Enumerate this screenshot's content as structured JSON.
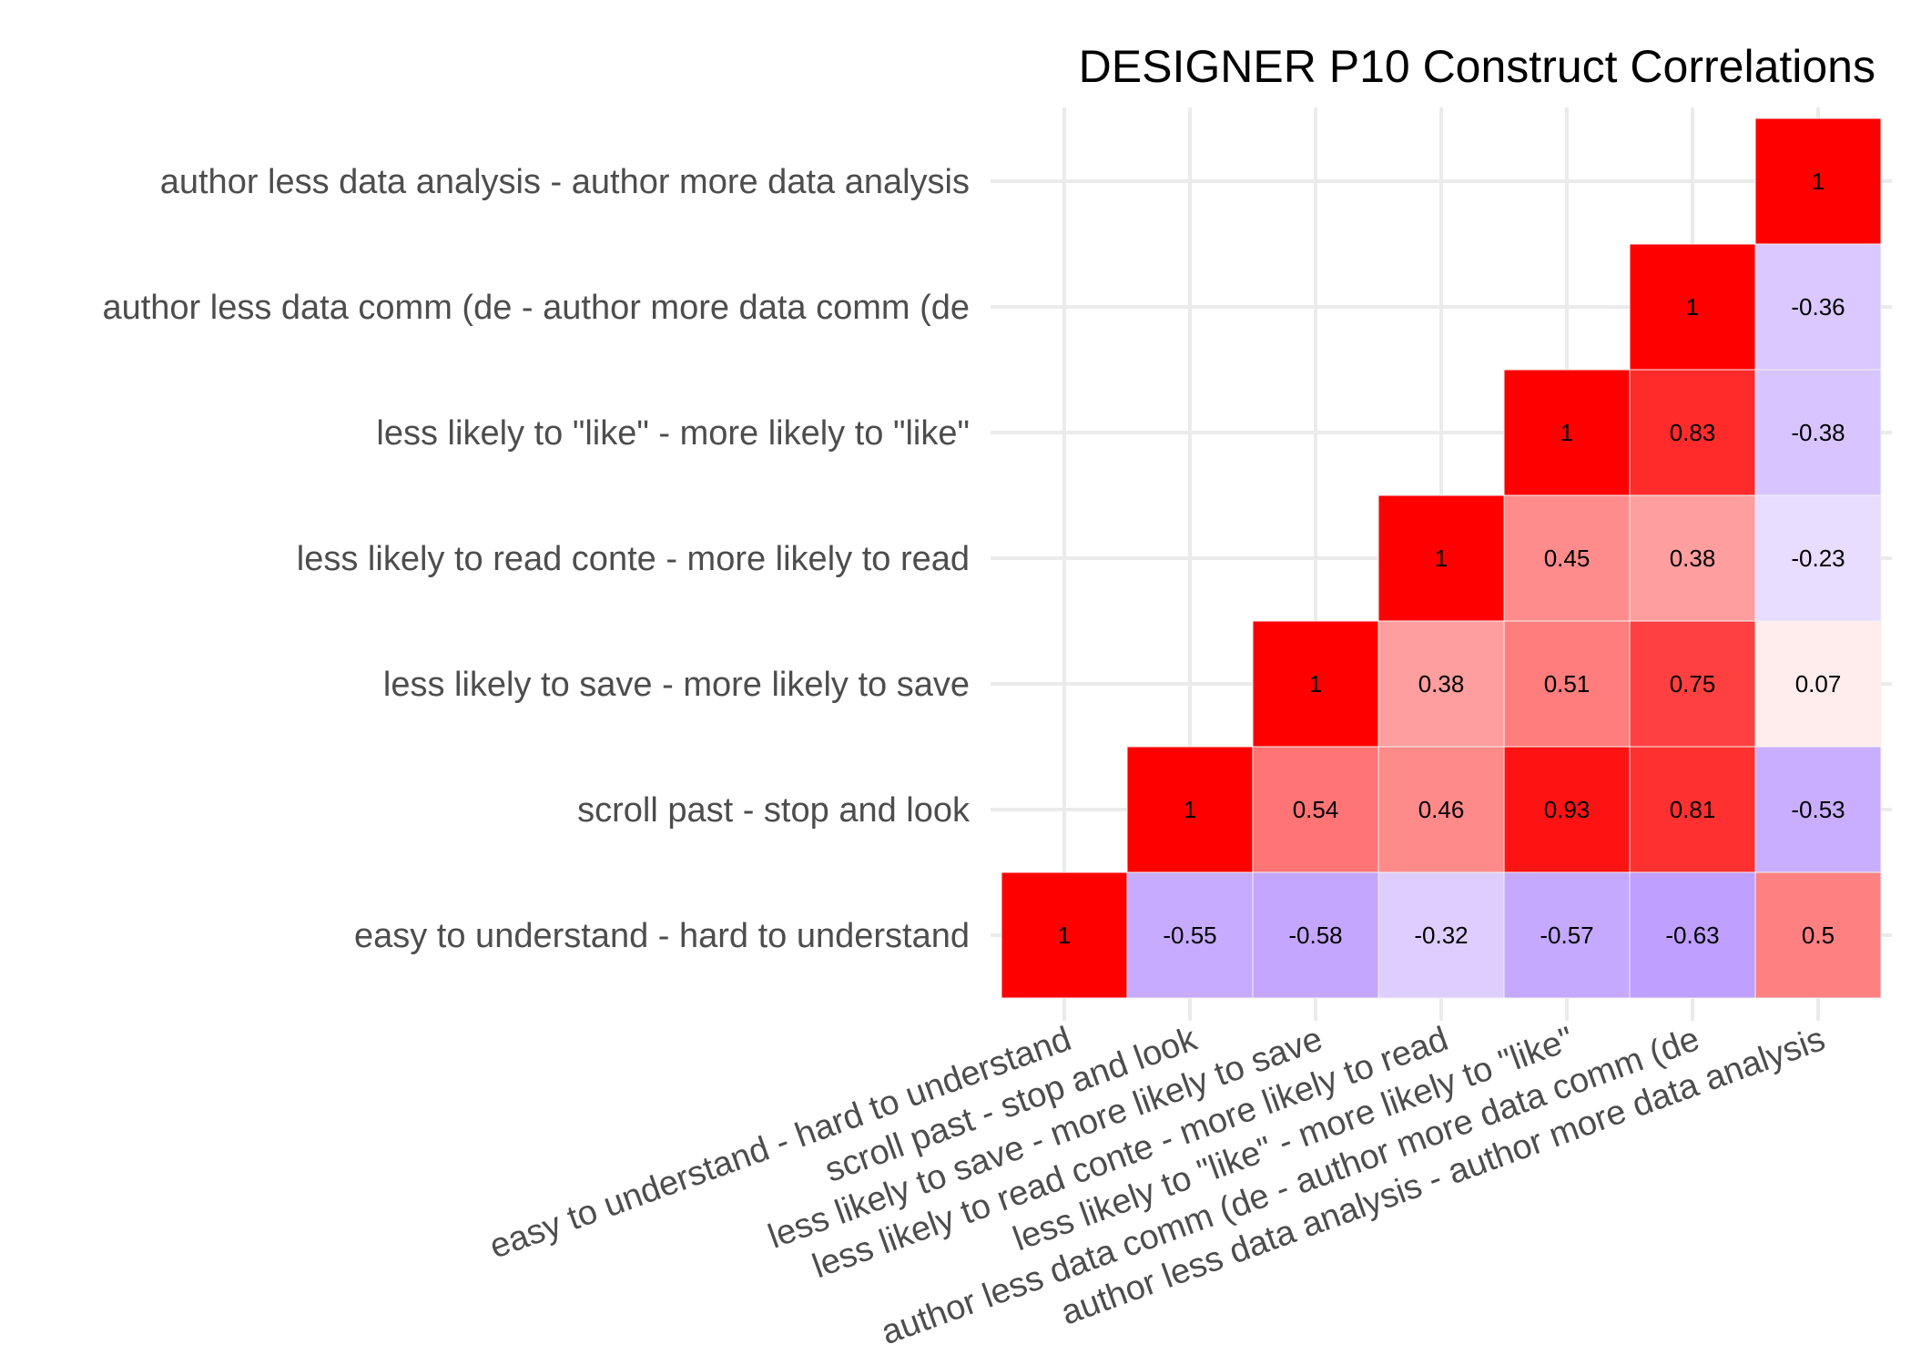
{
  "chart_data": {
    "type": "heatmap",
    "title": "DESIGNER P10 Construct Correlations",
    "xlabel": "",
    "ylabel": "",
    "categories": [
      "easy to understand - hard to understand",
      "scroll past - stop and look",
      "less likely to save - more likely to save",
      "less likely to read conte - more likely to read",
      "less likely to \"like\" - more likely to \"like\"",
      "author less data comm (de - author more data comm (de",
      "author less data analysis - author more data analysis"
    ],
    "cells": [
      {
        "x": 0,
        "y": 0,
        "value": 1,
        "label": "1"
      },
      {
        "x": 1,
        "y": 0,
        "value": -0.55,
        "label": "-0.55"
      },
      {
        "x": 2,
        "y": 0,
        "value": -0.58,
        "label": "-0.58"
      },
      {
        "x": 3,
        "y": 0,
        "value": -0.32,
        "label": "-0.32"
      },
      {
        "x": 4,
        "y": 0,
        "value": -0.57,
        "label": "-0.57"
      },
      {
        "x": 5,
        "y": 0,
        "value": -0.63,
        "label": "-0.63"
      },
      {
        "x": 6,
        "y": 0,
        "value": 0.5,
        "label": "0.5"
      },
      {
        "x": 1,
        "y": 1,
        "value": 1,
        "label": "1"
      },
      {
        "x": 2,
        "y": 1,
        "value": 0.54,
        "label": "0.54"
      },
      {
        "x": 3,
        "y": 1,
        "value": 0.46,
        "label": "0.46"
      },
      {
        "x": 4,
        "y": 1,
        "value": 0.93,
        "label": "0.93"
      },
      {
        "x": 5,
        "y": 1,
        "value": 0.81,
        "label": "0.81"
      },
      {
        "x": 6,
        "y": 1,
        "value": -0.53,
        "label": "-0.53"
      },
      {
        "x": 2,
        "y": 2,
        "value": 1,
        "label": "1"
      },
      {
        "x": 3,
        "y": 2,
        "value": 0.38,
        "label": "0.38"
      },
      {
        "x": 4,
        "y": 2,
        "value": 0.51,
        "label": "0.51"
      },
      {
        "x": 5,
        "y": 2,
        "value": 0.75,
        "label": "0.75"
      },
      {
        "x": 6,
        "y": 2,
        "value": 0.07,
        "label": "0.07"
      },
      {
        "x": 3,
        "y": 3,
        "value": 1,
        "label": "1"
      },
      {
        "x": 4,
        "y": 3,
        "value": 0.45,
        "label": "0.45"
      },
      {
        "x": 5,
        "y": 3,
        "value": 0.38,
        "label": "0.38"
      },
      {
        "x": 6,
        "y": 3,
        "value": -0.23,
        "label": "-0.23"
      },
      {
        "x": 4,
        "y": 4,
        "value": 1,
        "label": "1"
      },
      {
        "x": 5,
        "y": 4,
        "value": 0.83,
        "label": "0.83"
      },
      {
        "x": 6,
        "y": 4,
        "value": -0.38,
        "label": "-0.38"
      },
      {
        "x": 5,
        "y": 5,
        "value": 1,
        "label": "1"
      },
      {
        "x": 6,
        "y": 5,
        "value": -0.36,
        "label": "-0.36"
      },
      {
        "x": 6,
        "y": 6,
        "value": 1,
        "label": "1"
      }
    ],
    "color_scale": {
      "low": "#9966ff",
      "mid": "#ffffff",
      "high": "#ff0000",
      "domain": [
        -1,
        0,
        1
      ]
    },
    "grid": true,
    "legend": "none"
  }
}
